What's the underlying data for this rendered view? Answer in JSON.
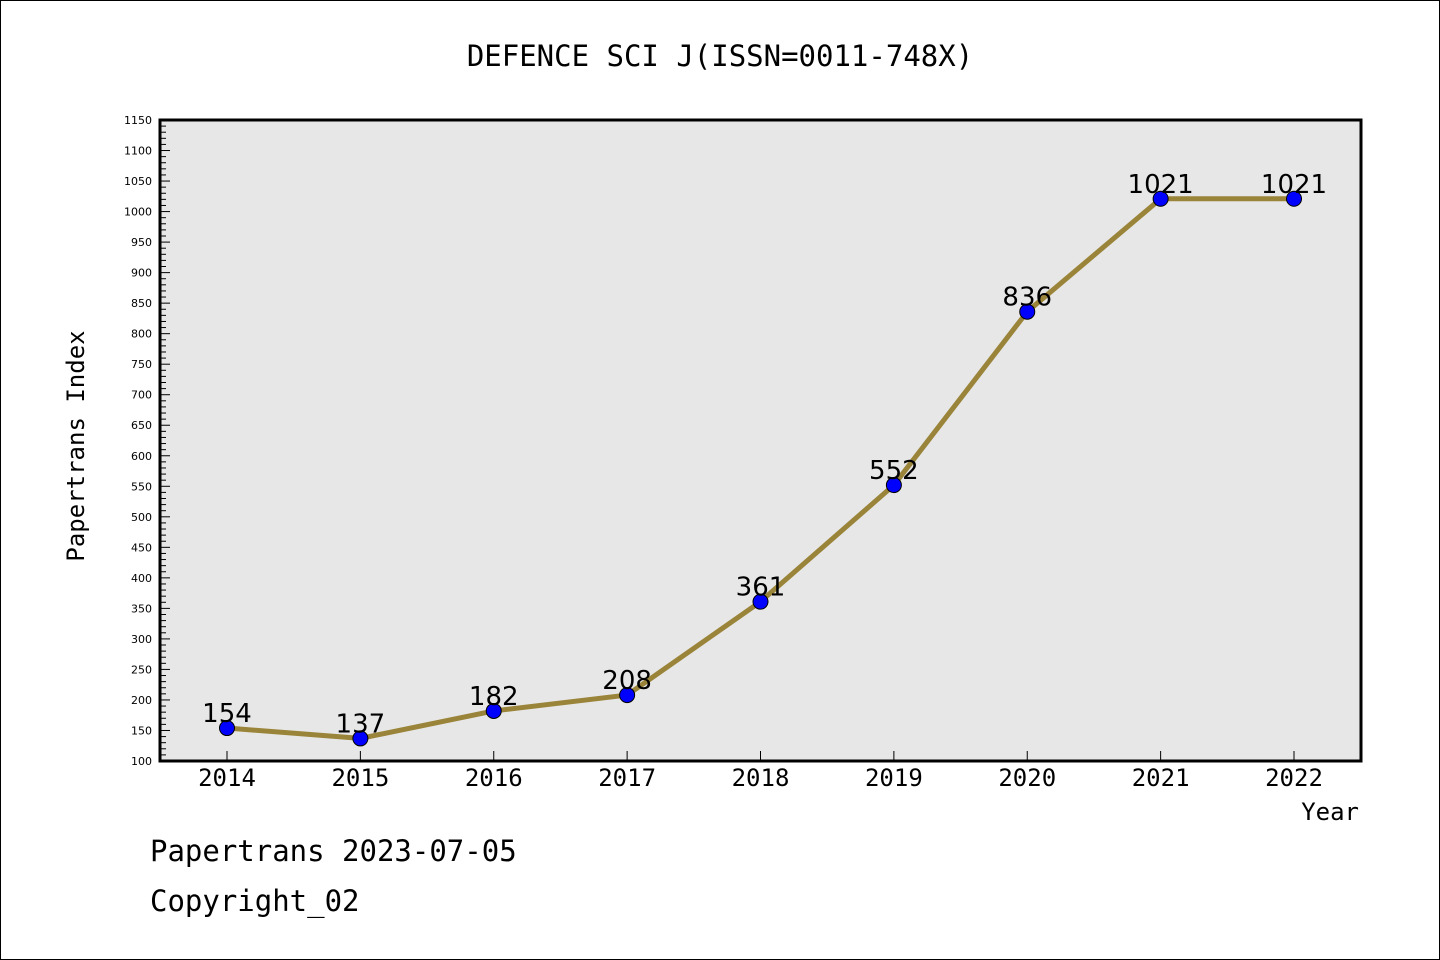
{
  "chart_data": {
    "type": "line",
    "title": "DEFENCE SCI J(ISSN=0011-748X)",
    "xlabel": "Year",
    "ylabel": "Papertrans Index",
    "categories": [
      "2014",
      "2015",
      "2016",
      "2017",
      "2018",
      "2019",
      "2020",
      "2021",
      "2022"
    ],
    "series": [
      {
        "values": [
          154,
          137,
          182,
          208,
          361,
          552,
          836,
          1021,
          1021
        ],
        "data_labels": [
          "154",
          "137",
          "182",
          "208",
          "361",
          "552",
          "836",
          "1021",
          "1021"
        ]
      }
    ],
    "ylim": [
      100,
      1150
    ],
    "ytick_step": 50,
    "yminor_step": 10,
    "yticks": [
      "100",
      "150",
      "200",
      "250",
      "300",
      "350",
      "400",
      "450",
      "500",
      "550",
      "600",
      "650",
      "700",
      "750",
      "800",
      "850",
      "900",
      "950",
      "1000",
      "1050",
      "1100",
      "1150"
    ],
    "grid": false,
    "legend": "none",
    "line_color": "#9a8439",
    "marker_color": "#0000ff",
    "plot_background": "#e7e7e7"
  },
  "footer": {
    "date_line": "Papertrans 2023-07-05",
    "copyright_line": "Copyright_02"
  }
}
